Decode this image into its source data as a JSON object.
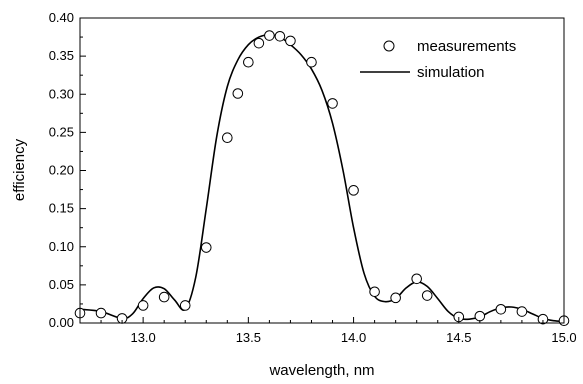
{
  "chart_data": {
    "type": "scatter",
    "title": "",
    "xlabel": "wavelength, nm",
    "ylabel": "efficiency",
    "xlim": [
      12.7,
      15.0
    ],
    "ylim": [
      0.0,
      0.4
    ],
    "x_ticks": [
      "13.0",
      "13.5",
      "14.0",
      "14.5",
      "15.0"
    ],
    "y_ticks": [
      "0.00",
      "0.05",
      "0.10",
      "0.15",
      "0.20",
      "0.25",
      "0.30",
      "0.35",
      "0.40"
    ],
    "grid": false,
    "legend_position": "top-right",
    "series": [
      {
        "name": "measurements",
        "style": "open-circle-markers",
        "color": "#000000",
        "x": [
          12.7,
          12.8,
          12.9,
          13.0,
          13.1,
          13.2,
          13.3,
          13.4,
          13.45,
          13.5,
          13.55,
          13.6,
          13.65,
          13.7,
          13.8,
          13.9,
          14.0,
          14.1,
          14.2,
          14.3,
          14.35,
          14.5,
          14.6,
          14.7,
          14.8,
          14.9,
          15.0
        ],
        "y": [
          0.013,
          0.013,
          0.006,
          0.023,
          0.034,
          0.023,
          0.099,
          0.243,
          0.301,
          0.342,
          0.367,
          0.377,
          0.376,
          0.37,
          0.342,
          0.288,
          0.174,
          0.041,
          0.033,
          0.058,
          0.036,
          0.008,
          0.009,
          0.018,
          0.015,
          0.005,
          0.003
        ]
      },
      {
        "name": "simulation",
        "style": "solid-line",
        "color": "#000000",
        "x": [
          12.7,
          12.8,
          12.9,
          12.95,
          13.0,
          13.05,
          13.1,
          13.15,
          13.2,
          13.25,
          13.3,
          13.35,
          13.4,
          13.45,
          13.5,
          13.55,
          13.6,
          13.65,
          13.7,
          13.75,
          13.8,
          13.85,
          13.9,
          13.95,
          14.0,
          14.05,
          14.1,
          14.15,
          14.2,
          14.25,
          14.3,
          14.35,
          14.4,
          14.45,
          14.5,
          14.55,
          14.6,
          14.65,
          14.7,
          14.75,
          14.8,
          14.85,
          14.9,
          14.95,
          15.0
        ],
        "y": [
          0.018,
          0.015,
          0.006,
          0.012,
          0.032,
          0.046,
          0.045,
          0.03,
          0.018,
          0.06,
          0.15,
          0.245,
          0.31,
          0.345,
          0.365,
          0.375,
          0.378,
          0.375,
          0.365,
          0.352,
          0.333,
          0.305,
          0.262,
          0.2,
          0.125,
          0.065,
          0.035,
          0.028,
          0.032,
          0.046,
          0.054,
          0.048,
          0.032,
          0.015,
          0.006,
          0.005,
          0.008,
          0.015,
          0.02,
          0.021,
          0.018,
          0.012,
          0.006,
          0.003,
          0.002
        ]
      }
    ]
  }
}
